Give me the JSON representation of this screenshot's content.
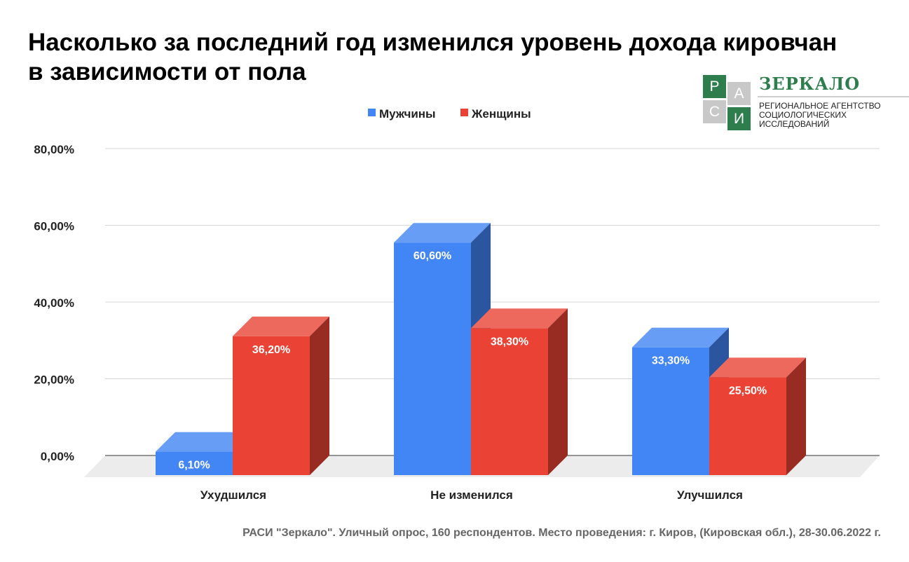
{
  "chart_data": {
    "type": "bar",
    "title": "Насколько за последний год изменился уровень дохода кировчан в зависимости от пола",
    "title_lines": [
      "Насколько за последний год изменился уровень дохода кировчан",
      "в зависимости от пола"
    ],
    "categories": [
      "Ухудшился",
      "Не изменился",
      "Улучшился"
    ],
    "series": [
      {
        "name": "Мужчины",
        "values": [
          6.1,
          60.6,
          33.3
        ],
        "labels": [
          "6,10%",
          "60,60%",
          "33,30%"
        ],
        "color": "#4285f4"
      },
      {
        "name": "Женщины",
        "values": [
          36.2,
          38.3,
          25.5
        ],
        "labels": [
          "36,20%",
          "38,30%",
          "25,50%"
        ],
        "color": "#ea4335"
      }
    ],
    "y_ticks": [
      0,
      20,
      40,
      60,
      80
    ],
    "y_tick_labels": [
      "0,00%",
      "20,00%",
      "40,00%",
      "60,00%",
      "80,00%"
    ],
    "ylim": [
      0,
      80
    ],
    "grid": true,
    "legend_position": "top",
    "style": "3d-bar"
  },
  "logo": {
    "tiles": [
      "Р",
      "А",
      "С",
      "И"
    ],
    "name": "ЗЕРКАЛО",
    "subtitle_lines": [
      "РЕГИОНАЛЬНОЕ АГЕНТСТВО",
      "СОЦИОЛОГИЧЕСКИХ",
      "ИССЛЕДОВАНИЙ"
    ],
    "green": "#2e7d4c",
    "gray": "#c8c8c8"
  },
  "footnote": "РАСИ \"Зеркало\". Уличный опрос, 160 респондентов. Место проведения: г. Киров, (Кировская обл.), 28-30.06.2022 г."
}
